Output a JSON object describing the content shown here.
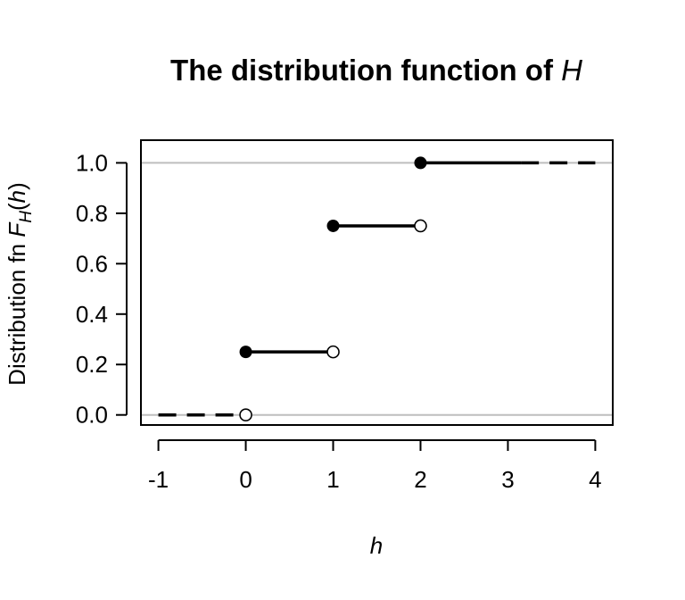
{
  "chart_data": {
    "type": "step",
    "title_text": "The distribution function of ",
    "title_var": "H",
    "xlabel": "h",
    "ylabel_prefix": "Distribution fn ",
    "ylabel_F": "F",
    "ylabel_sub": "H",
    "ylabel_paren_open": "(",
    "ylabel_arg": "h",
    "ylabel_paren_close": ")",
    "xlim": [
      -1.2,
      4.2
    ],
    "ylim": [
      -0.04,
      1.09
    ],
    "x_ticks": [
      -1,
      0,
      1,
      2,
      3,
      4
    ],
    "x_tick_labels": [
      "-1",
      "0",
      "1",
      "2",
      "3",
      "4"
    ],
    "y_ticks": [
      0,
      0.2,
      0.4,
      0.6,
      0.8,
      1
    ],
    "y_tick_labels": [
      "0.0",
      "0.2",
      "0.4",
      "0.6",
      "0.8",
      "1.0"
    ],
    "reference_lines_y": [
      0,
      1
    ],
    "segments": [
      {
        "x_start": -1,
        "x_end": 0,
        "y": 0,
        "style": "dashed",
        "left_closed": false,
        "right_open": true
      },
      {
        "x_start": 0,
        "x_end": 1,
        "y": 0.25,
        "style": "solid",
        "left_closed": true,
        "right_open": true
      },
      {
        "x_start": 1,
        "x_end": 2,
        "y": 0.75,
        "style": "solid",
        "left_closed": true,
        "right_open": true
      },
      {
        "x_start": 2,
        "x_end": 4,
        "y": 1,
        "style": "solid-then-dashed",
        "left_closed": true,
        "right_open": false
      }
    ],
    "colors": {
      "line": "#000000",
      "reference": "#bebebe",
      "frame": "#000000"
    }
  }
}
